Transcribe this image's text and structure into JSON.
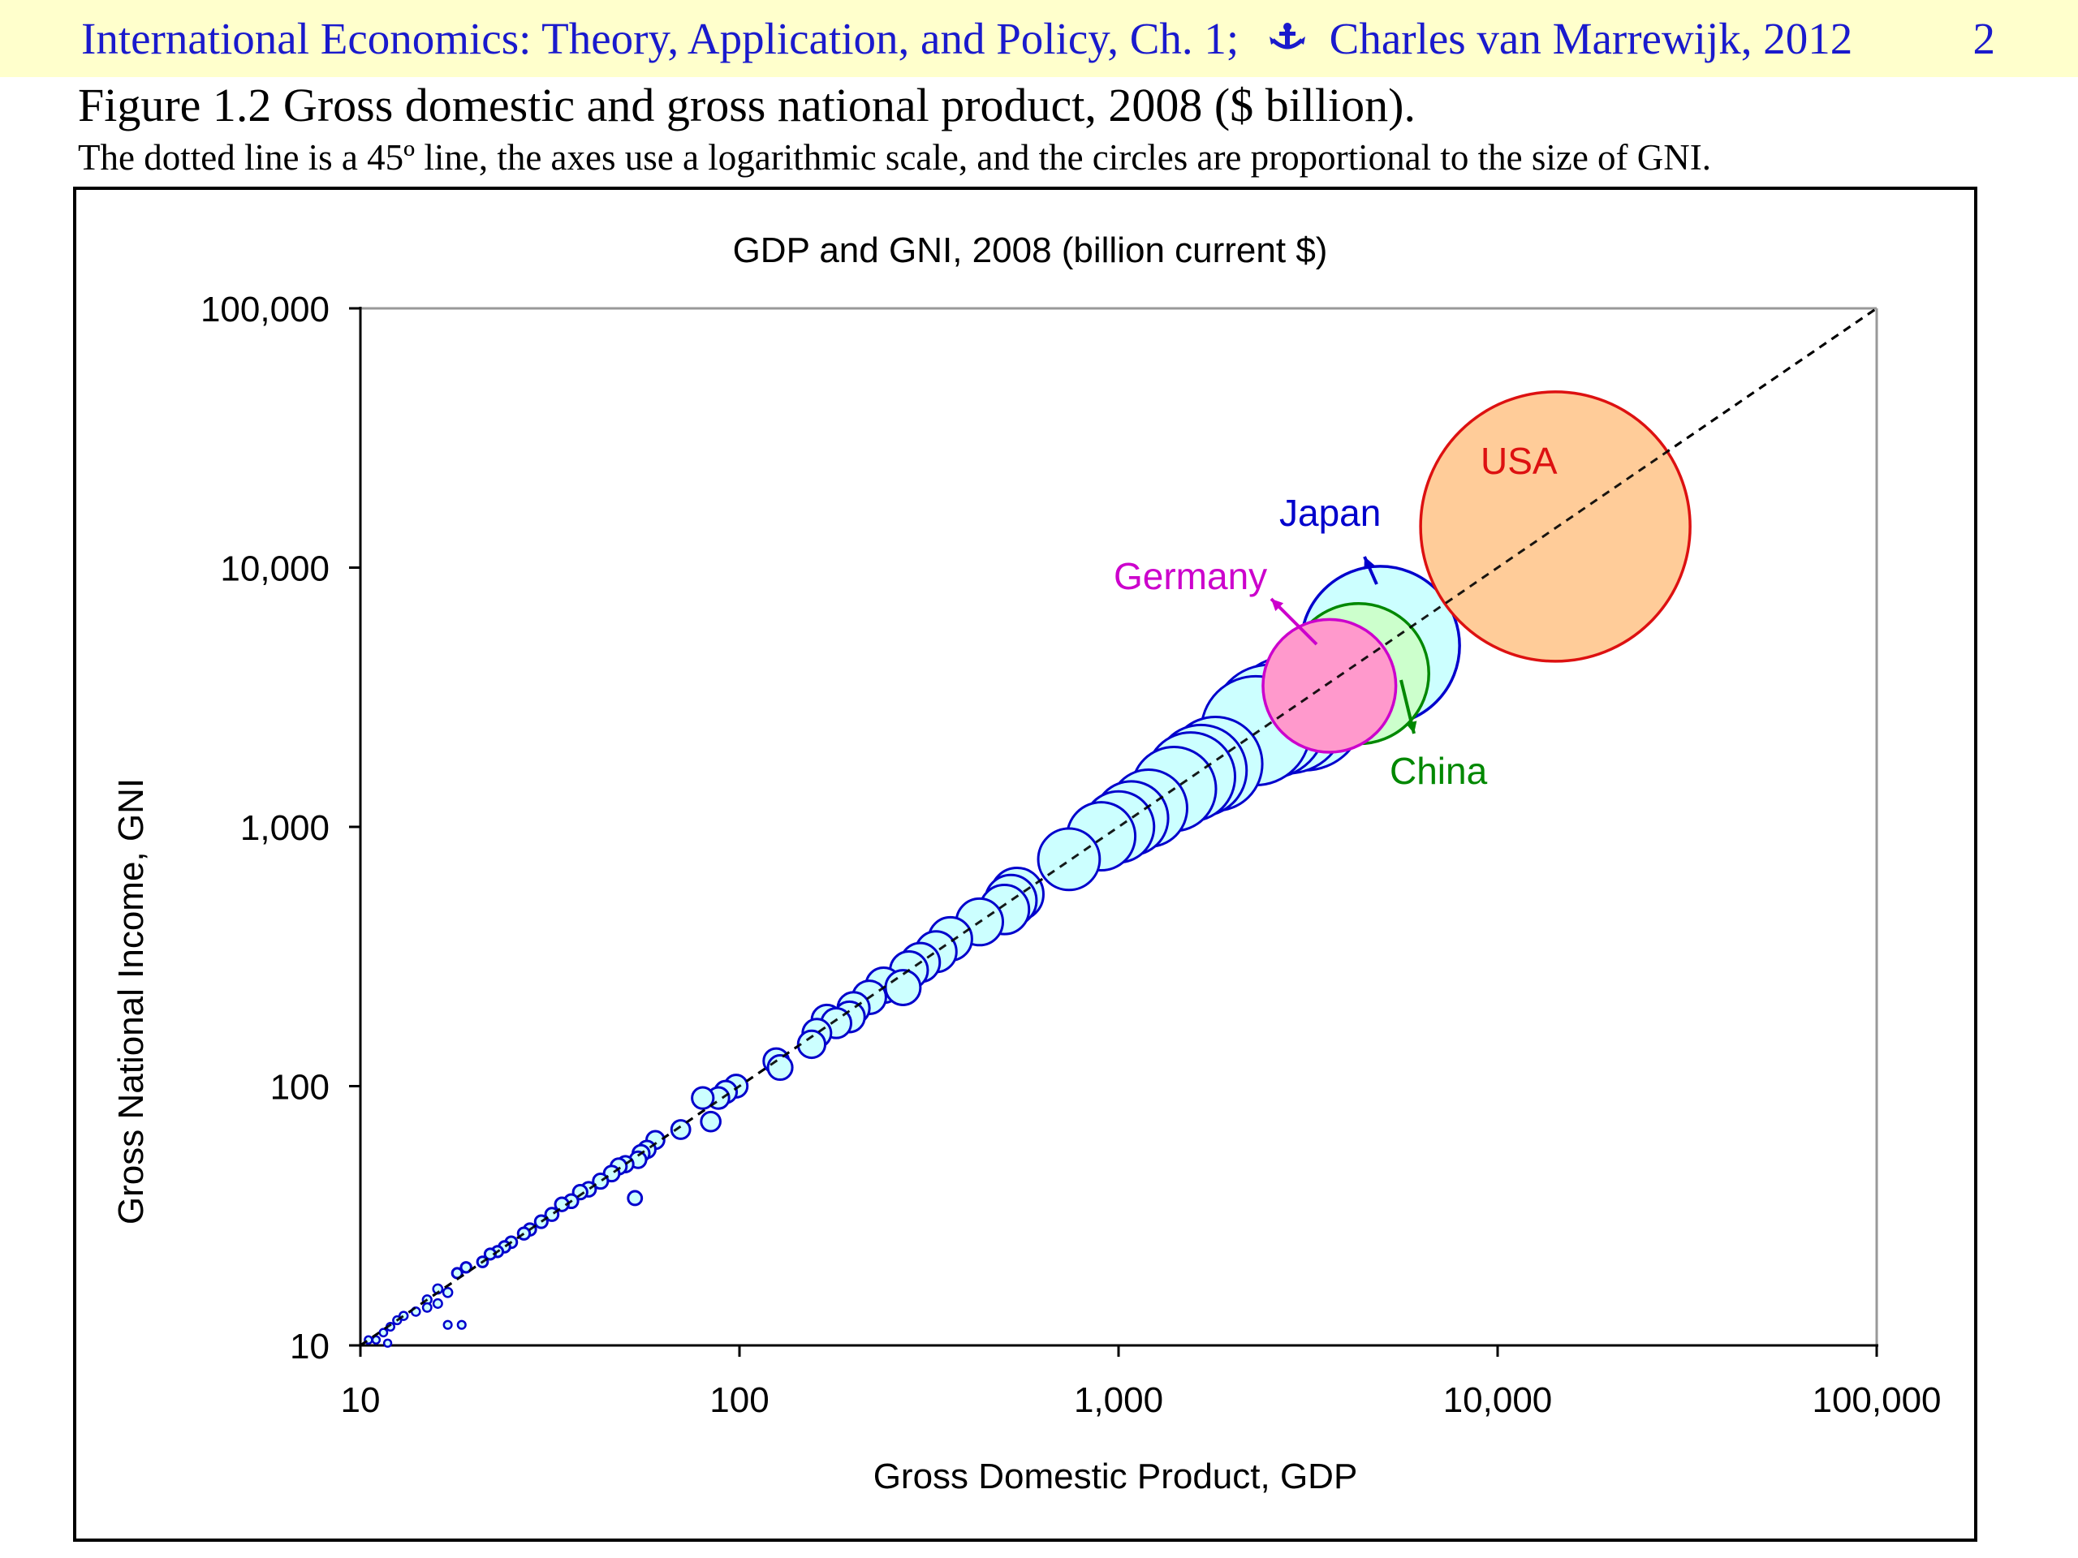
{
  "header": {
    "book_title": "International Economics: Theory, Application, and Policy, Ch. 1;",
    "author_year": "Charles van Marrewijk, 2012",
    "page_number": "2",
    "icon": "anchor-icon",
    "text_color": "#1a1acc",
    "background": "#ffffcc"
  },
  "figure": {
    "title": "Figure 1.2 Gross domestic and gross national product, 2008 ($ billion).",
    "caption": "The dotted line is a 45º line, the axes use a logarithmic scale, and the circles are proportional to the size of GNI."
  },
  "chart_data": {
    "type": "scatter",
    "title": "GDP and GNI, 2008 (billion current $)",
    "xlabel": "Gross Domestic Product, GDP",
    "ylabel": "Gross National Income, GNI",
    "xscale": "log",
    "yscale": "log",
    "xlim": [
      10,
      100000
    ],
    "ylim": [
      10,
      100000
    ],
    "xticks": [
      "10",
      "100",
      "1,000",
      "10,000",
      "100,000"
    ],
    "yticks": [
      "10",
      "100",
      "1,000",
      "10,000",
      "100,000"
    ],
    "grid": false,
    "legend": "none",
    "reference_line": "45-degree dotted line",
    "bubble_size": "proportional to GNI",
    "default_colors": {
      "fill": "#ccffff",
      "stroke": "#0000cc"
    },
    "highlighted": [
      {
        "label": "USA",
        "gdp": 14200,
        "gni": 14400,
        "fill": "#ffcc99",
        "stroke": "#dd1111",
        "label_color": "#dd1111"
      },
      {
        "label": "Japan",
        "gdp": 4900,
        "gni": 5000,
        "fill": "#ccffff",
        "stroke": "#0000cc",
        "label_color": "#0000cc"
      },
      {
        "label": "China",
        "gdp": 4300,
        "gni": 3900,
        "fill": "#ccffcc",
        "stroke": "#008800",
        "label_color": "#008800"
      },
      {
        "label": "Germany",
        "gdp": 3600,
        "gni": 3500,
        "fill": "#ff99cc",
        "stroke": "#cc00cc",
        "label_color": "#cc00cc"
      }
    ],
    "points": [
      [
        3100,
        2800
      ],
      [
        2800,
        2700
      ],
      [
        2500,
        2550
      ],
      [
        2300,
        2350
      ],
      [
        1800,
        1750
      ],
      [
        1650,
        1650
      ],
      [
        1550,
        1560
      ],
      [
        1400,
        1400
      ],
      [
        1200,
        1180
      ],
      [
        1080,
        1080
      ],
      [
        1000,
        1000
      ],
      [
        900,
        920
      ],
      [
        740,
        750
      ],
      [
        540,
        550
      ],
      [
        520,
        520
      ],
      [
        500,
        480
      ],
      [
        430,
        430
      ],
      [
        360,
        370
      ],
      [
        330,
        330
      ],
      [
        300,
        300
      ],
      [
        280,
        280
      ],
      [
        270,
        240
      ],
      [
        240,
        245
      ],
      [
        220,
        220
      ],
      [
        200,
        200
      ],
      [
        195,
        185
      ],
      [
        180,
        175
      ],
      [
        170,
        180
      ],
      [
        160,
        160
      ],
      [
        155,
        145
      ],
      [
        125,
        125
      ],
      [
        128,
        118
      ],
      [
        98,
        100
      ],
      [
        92,
        95
      ],
      [
        88,
        90
      ],
      [
        80,
        90
      ],
      [
        84,
        73
      ],
      [
        70,
        68
      ],
      [
        60,
        62
      ],
      [
        57,
        57
      ],
      [
        55,
        55
      ],
      [
        54,
        52
      ],
      [
        53,
        37
      ],
      [
        50,
        50
      ],
      [
        48,
        49
      ],
      [
        46,
        46
      ],
      [
        43,
        43
      ],
      [
        40,
        40
      ],
      [
        38,
        39
      ],
      [
        36,
        36
      ],
      [
        34,
        35
      ],
      [
        32,
        32
      ],
      [
        30,
        30
      ],
      [
        28,
        28
      ],
      [
        27,
        27
      ],
      [
        25,
        25
      ],
      [
        24,
        24
      ],
      [
        23,
        23
      ],
      [
        22,
        22.5
      ],
      [
        21,
        21
      ],
      [
        19,
        20
      ],
      [
        18,
        19
      ],
      [
        17,
        16
      ],
      [
        16,
        16.5
      ],
      [
        15,
        15
      ],
      [
        14,
        13.5
      ],
      [
        13,
        13
      ],
      [
        12.5,
        12.5
      ],
      [
        12,
        11.8
      ],
      [
        11.5,
        11.2
      ],
      [
        11,
        10.5
      ],
      [
        10.5,
        10.5
      ],
      [
        15,
        14
      ],
      [
        16,
        14.5
      ],
      [
        17,
        12
      ],
      [
        18.5,
        12
      ],
      [
        11.8,
        10.2
      ]
    ]
  }
}
